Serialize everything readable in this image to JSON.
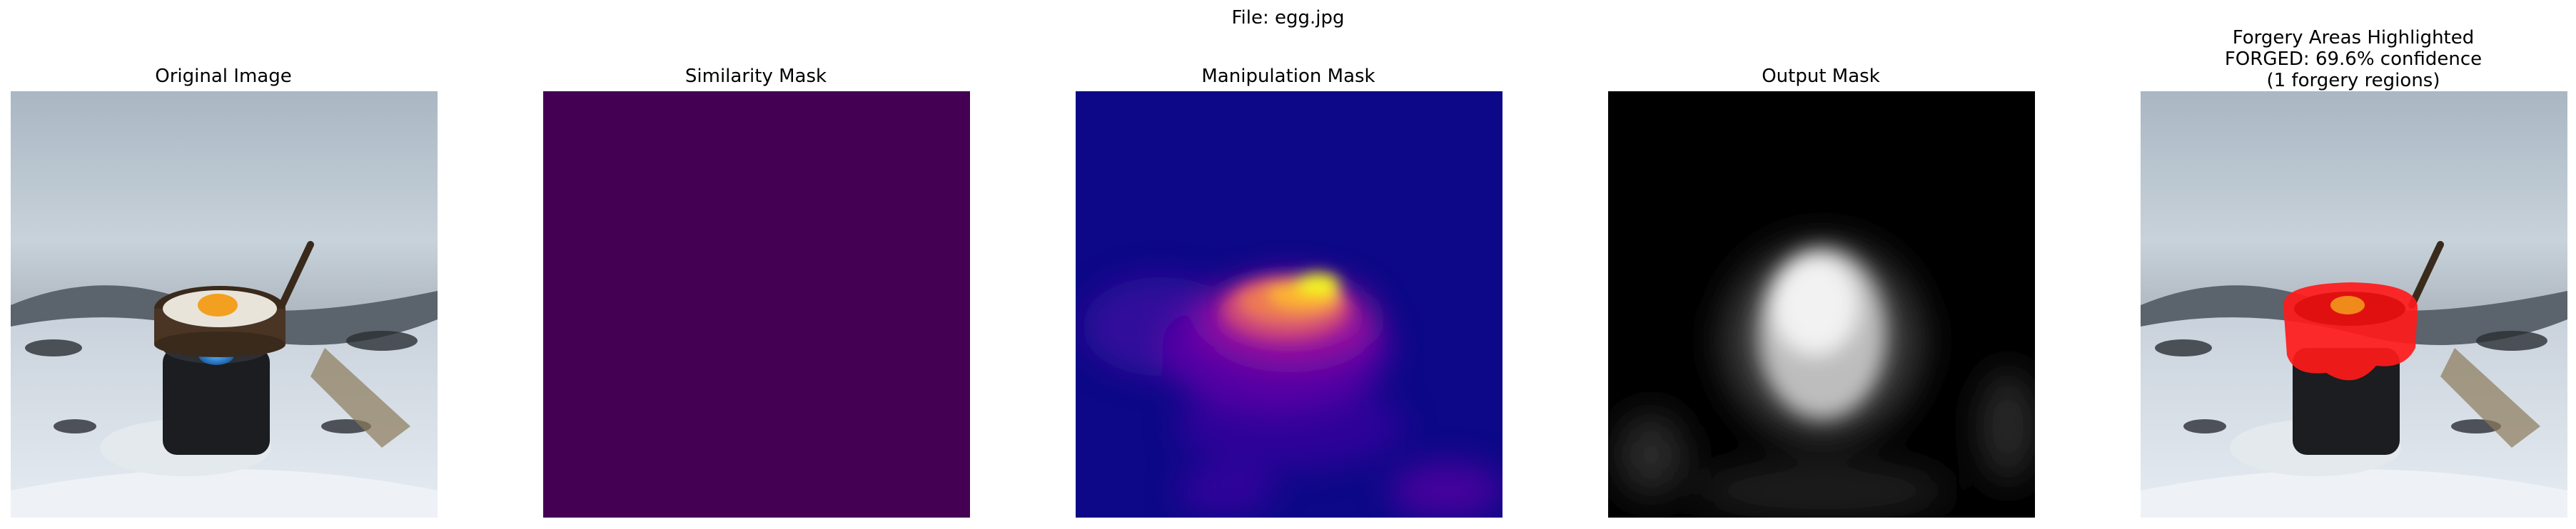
{
  "figure": {
    "file_label": "File: egg.jpg"
  },
  "panels": [
    {
      "title": "Original Image"
    },
    {
      "title": "Similarity Mask"
    },
    {
      "title": "Manipulation Mask"
    },
    {
      "title": "Output Mask"
    },
    {
      "title_lines": [
        "Forgery Areas Highlighted",
        "FORGED: 69.6% confidence",
        "(1 forgery regions)"
      ]
    }
  ],
  "colors": {
    "similarity_fill": "#440154",
    "manipulation_bg": "#0d0887",
    "forgery_overlay": "#ff1a1a",
    "output_bg": "#000000"
  }
}
